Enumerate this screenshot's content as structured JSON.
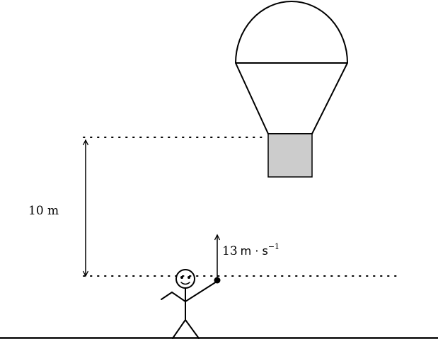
{
  "labels": {
    "height": "10 m",
    "velocity_value": "13",
    "velocity_unit": "m · s",
    "velocity_exponent": "−1"
  },
  "colors": {
    "stroke": "#000000",
    "basket_fill": "#cccccc",
    "background": "#ffffff"
  }
}
